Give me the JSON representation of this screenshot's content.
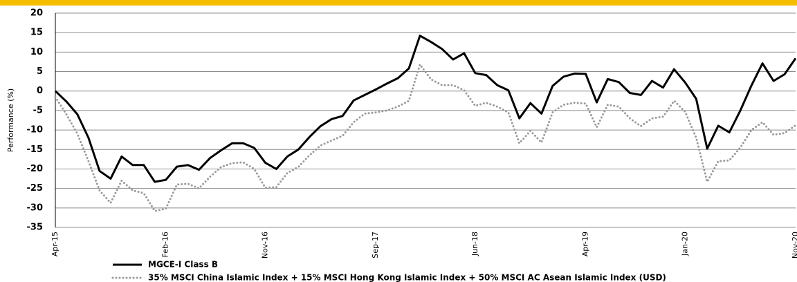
{
  "chart_data": {
    "type": "line",
    "y_label": "Performance (%)",
    "categories": [
      "Apr-15",
      null,
      null,
      null,
      null,
      null,
      null,
      null,
      null,
      null,
      "Feb-16",
      null,
      null,
      null,
      null,
      null,
      null,
      null,
      null,
      "Nov-16",
      null,
      null,
      null,
      null,
      null,
      null,
      null,
      null,
      null,
      "Sep-17",
      null,
      null,
      null,
      null,
      null,
      null,
      null,
      null,
      "Jun-18",
      null,
      null,
      null,
      null,
      null,
      null,
      null,
      null,
      null,
      "Apr-19",
      null,
      null,
      null,
      null,
      null,
      null,
      null,
      null,
      "Jan-20",
      null,
      null,
      null,
      null,
      null,
      null,
      null,
      null,
      null,
      "Nov-20"
    ],
    "series": [
      {
        "name": "MGCE-I Class B",
        "color": "#000000",
        "style": "solid",
        "values": [
          0,
          -2.7,
          -6,
          -12,
          -20.5,
          -22.5,
          -16.8,
          -19,
          -19,
          -23.3,
          -22.8,
          -19.4,
          -19,
          -20.2,
          -17.2,
          -15.2,
          -13.4,
          -13.4,
          -14.6,
          -18.4,
          -20,
          -16.8,
          -15,
          -11.8,
          -9,
          -7.2,
          -6.4,
          -2.4,
          -1,
          0.4,
          1.9,
          3.3,
          5.8,
          14.2,
          12.6,
          10.8,
          8.1,
          9.7,
          4.6,
          4.1,
          1.5,
          0.2,
          -7,
          -3.1,
          -5.8,
          1.3,
          3.7,
          4.5,
          4.4,
          -2.9,
          3.1,
          2.3,
          -0.5,
          -1,
          2.6,
          0.9,
          5.6,
          2.2,
          -2,
          -14.8,
          -8.9,
          -10.6,
          -5,
          1.4,
          7.1,
          2.6,
          4.3,
          8.4
        ]
      },
      {
        "name": "35% MSCI China Islamic Index + 15% MSCI Hong Kong Islamic Index + 50% MSCI AC Asean Islamic Index (USD)",
        "color": "#999999",
        "style": "dotted",
        "values": [
          -1.5,
          -6,
          -11,
          -18,
          -25.5,
          -28.7,
          -23,
          -25.5,
          -26.2,
          -30.8,
          -30.2,
          -24,
          -23.8,
          -25,
          -22,
          -19.5,
          -18.5,
          -18.3,
          -20,
          -24.8,
          -24.7,
          -21,
          -19.5,
          -16.5,
          -14,
          -12.7,
          -11.5,
          -8,
          -5.8,
          -5.5,
          -5,
          -4,
          -2.5,
          6.8,
          3,
          1.5,
          1.5,
          0.2,
          -3.8,
          -3,
          -4,
          -5.5,
          -13.4,
          -10.2,
          -13.2,
          -5.5,
          -3.5,
          -3,
          -3.2,
          -9.3,
          -3.5,
          -4,
          -7,
          -9,
          -7,
          -6.6,
          -2.5,
          -5.3,
          -12,
          -23.3,
          -18,
          -17.8,
          -14.5,
          -10,
          -8,
          -11.2,
          -10.8,
          -8.8
        ]
      }
    ],
    "ylim": [
      -35,
      20
    ],
    "yticks": [
      -35,
      -30,
      -25,
      -20,
      -15,
      -10,
      -5,
      0,
      5,
      10,
      15,
      20
    ],
    "grid": true
  }
}
